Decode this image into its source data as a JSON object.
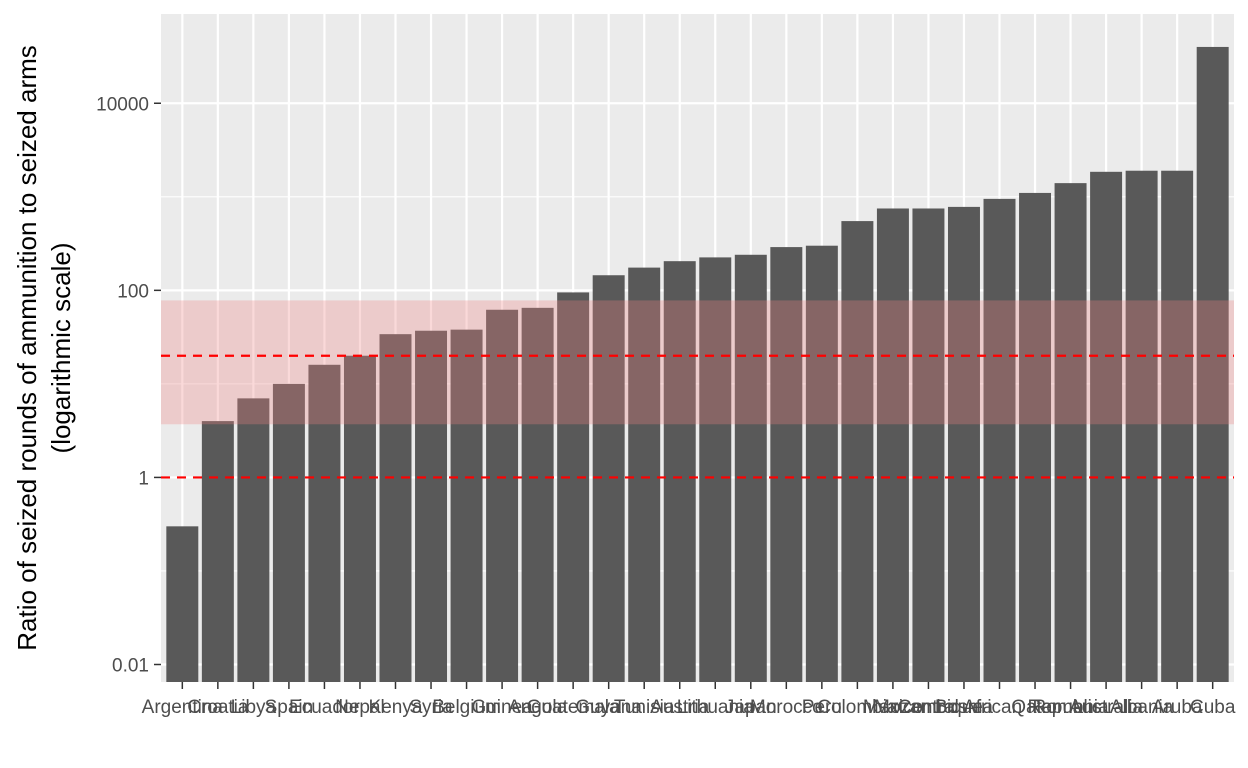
{
  "chart_data": {
    "type": "bar",
    "ylabel": "Ratio of seized rounds of ammunition to seized arms",
    "ylabel_sub": "(logarithmic scale)",
    "y_scale": "log10",
    "y_ticks": [
      0.01,
      1,
      100,
      10000
    ],
    "y_tick_labels": [
      "0.01",
      "1",
      "100",
      "10000"
    ],
    "ylim": [
      0.0065,
      90000
    ],
    "categories": [
      "Argentina",
      "Croatia",
      "Libya",
      "Spain",
      "Ecuador",
      "Nepal",
      "Kenya",
      "Syria",
      "Belgium",
      "Guinea",
      "Angola",
      "Guatemala",
      "Guyana",
      "Tunisia",
      "Austria",
      "Lithuania",
      "Japan",
      "Morocco",
      "Peru",
      "Colombia",
      "Mexico",
      "Mozambique",
      "Bosnia",
      "Central African Republic",
      "Qatar",
      "Romania",
      "Australia",
      "Albania",
      "Aruba",
      "Cuba"
    ],
    "values": [
      0.3,
      4,
      7,
      10,
      16,
      20,
      34,
      37,
      38,
      62,
      65,
      95,
      145,
      175,
      205,
      225,
      240,
      290,
      300,
      550,
      750,
      750,
      780,
      950,
      1100,
      1400,
      1850,
      1900,
      1900,
      40000
    ],
    "bar_color": "#595959",
    "band": {
      "from": 3.7,
      "to": 78,
      "color": "#f08080",
      "opacity": 0.3
    },
    "reference_lines": [
      {
        "value": 1,
        "color": "#ff0000",
        "style": "dashed"
      },
      {
        "value": 20,
        "color": "#ff0000",
        "style": "dashed"
      }
    ],
    "panel_background": "#ebebeb",
    "grid": true,
    "legend": "none"
  }
}
